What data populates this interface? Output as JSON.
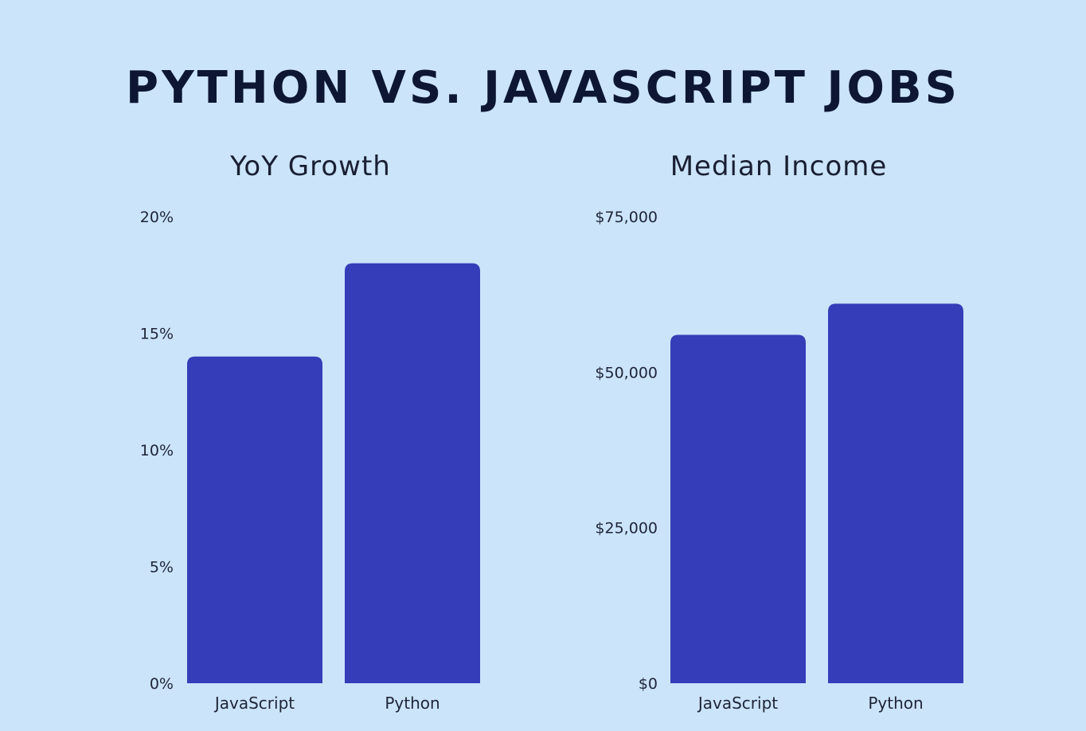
{
  "page": {
    "title": "PYTHON VS. JAVASCRIPT JOBS"
  },
  "colors": {
    "background": "#cbe4fa",
    "bar": "#353db8",
    "title": "#0d1733"
  },
  "chart_data": [
    {
      "type": "bar",
      "title": "YoY Growth",
      "xlabel": "",
      "ylabel": "",
      "categories": [
        "JavaScript",
        "Python"
      ],
      "values": [
        14,
        18
      ],
      "ylim": [
        0,
        20
      ],
      "yticks": [
        0,
        5,
        10,
        15,
        20
      ],
      "ytick_labels": [
        "0%",
        "5%",
        "10%",
        "15%",
        "20%"
      ],
      "grid": false,
      "legend": "none"
    },
    {
      "type": "bar",
      "title": "Median Income",
      "xlabel": "",
      "ylabel": "",
      "categories": [
        "JavaScript",
        "Python"
      ],
      "values": [
        56000,
        61000
      ],
      "ylim": [
        0,
        75000
      ],
      "yticks": [
        0,
        25000,
        50000,
        75000
      ],
      "ytick_labels": [
        "$0",
        "$25,000",
        "$50,000",
        "$75,000"
      ],
      "grid": false,
      "legend": "none"
    }
  ]
}
